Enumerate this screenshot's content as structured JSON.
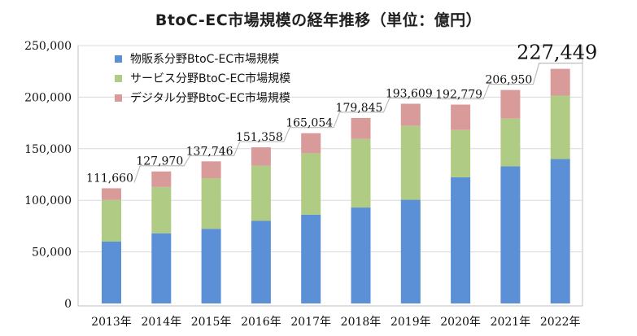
{
  "chart_data": {
    "type": "bar",
    "stacked": true,
    "title": "BtoC-EC市場規模の経年推移（単位：億円）",
    "categories": [
      "2013年",
      "2014年",
      "2015年",
      "2016年",
      "2017年",
      "2018年",
      "2019年",
      "2020年",
      "2021年",
      "2022年"
    ],
    "series": [
      {
        "name": "物販系分野BtoC-EC市場規模",
        "color": "#5b8fd6",
        "values": [
          59931,
          68043,
          72398,
          80043,
          86008,
          92992,
          100515,
          122333,
          132865,
          139997
        ]
      },
      {
        "name": "サービス分野BtoC-EC市場規模",
        "color": "#b0cc84",
        "values": [
          40466,
          44816,
          49014,
          53532,
          59568,
          66471,
          71672,
          45832,
          46424,
          61477
        ]
      },
      {
        "name": "デジタル分野BtoC-EC市場規模",
        "color": "#d99a9a",
        "values": [
          11263,
          15111,
          16334,
          17783,
          19478,
          20382,
          21422,
          24614,
          27661,
          25975
        ]
      }
    ],
    "totals": [
      111660,
      127970,
      137746,
      151358,
      165054,
      179845,
      193609,
      192779,
      206950,
      227449
    ],
    "total_labels": [
      "111,660",
      "127,970",
      "137,746",
      "151,358",
      "165,054",
      "179,845",
      "193,609",
      "192,779",
      "206,950",
      "227,449"
    ],
    "yticks": [
      0,
      50000,
      100000,
      150000,
      200000,
      250000
    ],
    "ytick_labels": [
      "0",
      "50,000",
      "100,000",
      "150,000",
      "200,000",
      "250,000"
    ],
    "ylim": [
      0,
      250000
    ],
    "grid": true,
    "legend_position": "top-left",
    "xlabel": "",
    "ylabel": ""
  }
}
